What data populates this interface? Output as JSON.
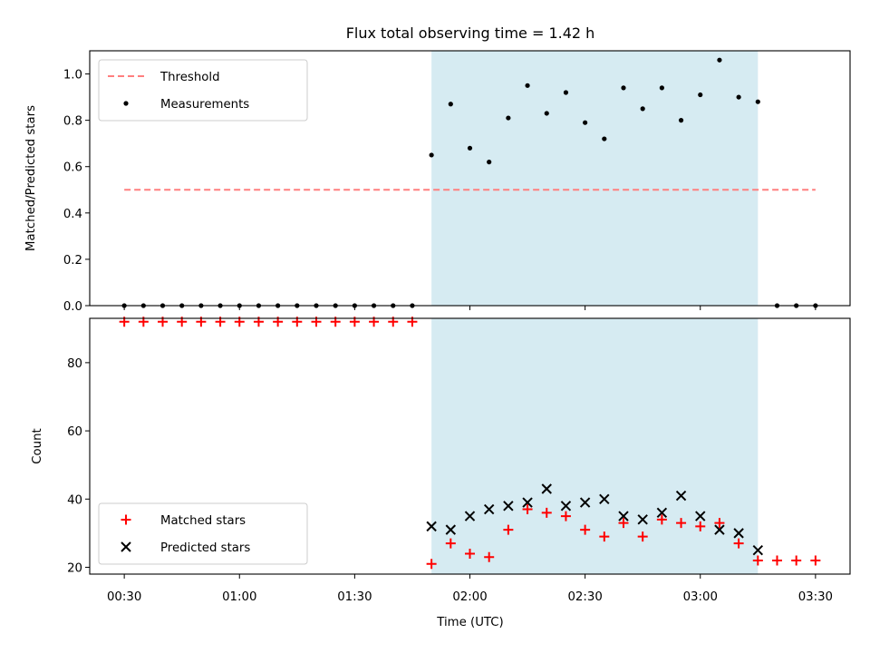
{
  "chart_data": {
    "type": "scatter",
    "title": "Flux total observing time = 1.42 h",
    "xlabel": "Time (UTC)",
    "x_ticks": [
      "00:30",
      "01:00",
      "01:30",
      "02:00",
      "02:30",
      "03:00",
      "03:30"
    ],
    "x_tick_minutes": [
      30,
      60,
      90,
      120,
      150,
      180,
      210
    ],
    "xlim_minutes": [
      21,
      219
    ],
    "shaded_window_minutes": [
      110,
      195
    ],
    "colors": {
      "threshold": "#ff7f7f",
      "measurements": "#000000",
      "matched": "#ff0000",
      "predicted": "#000000",
      "shade": "#add8e6"
    },
    "panels": [
      {
        "name": "ratio",
        "ylabel": "Matched/Predicted stars",
        "ylim": [
          0,
          1.1
        ],
        "y_ticks": [
          0.0,
          0.2,
          0.4,
          0.6,
          0.8,
          1.0
        ],
        "y_tick_labels": [
          "0.0",
          "0.2",
          "0.4",
          "0.6",
          "0.8",
          "1.0"
        ],
        "legend_position": "upper left",
        "series": [
          {
            "name": "Threshold",
            "kind": "dashed-line",
            "x": [
              30,
              210
            ],
            "y": [
              0.5,
              0.5
            ]
          },
          {
            "name": "Measurements",
            "kind": "dot",
            "x": [
              30,
              35,
              40,
              45,
              50,
              55,
              60,
              65,
              70,
              75,
              80,
              85,
              90,
              95,
              100,
              105,
              110,
              115,
              120,
              125,
              130,
              135,
              140,
              145,
              150,
              155,
              160,
              165,
              170,
              175,
              180,
              185,
              190,
              195,
              200,
              205,
              210
            ],
            "y": [
              0,
              0,
              0,
              0,
              0,
              0,
              0,
              0,
              0,
              0,
              0,
              0,
              0,
              0,
              0,
              0,
              0.65,
              0.87,
              0.68,
              0.62,
              0.81,
              0.95,
              0.83,
              0.92,
              0.79,
              0.72,
              0.94,
              0.85,
              0.94,
              0.8,
              0.91,
              1.06,
              0.9,
              0.88,
              0,
              0,
              0
            ]
          }
        ]
      },
      {
        "name": "count",
        "ylabel": "Count",
        "ylim": [
          18,
          93
        ],
        "y_ticks": [
          20,
          40,
          60,
          80
        ],
        "y_tick_labels": [
          "20",
          "40",
          "60",
          "80"
        ],
        "legend_position": "lower left",
        "series": [
          {
            "name": "Matched stars",
            "kind": "plus",
            "x": [
              30,
              35,
              40,
              45,
              50,
              55,
              60,
              65,
              70,
              75,
              80,
              85,
              90,
              95,
              100,
              105,
              110,
              115,
              120,
              125,
              130,
              135,
              140,
              145,
              150,
              155,
              160,
              165,
              170,
              175,
              180,
              185,
              190,
              195,
              200,
              205,
              210
            ],
            "y": [
              92,
              92,
              92,
              92,
              92,
              92,
              92,
              92,
              92,
              92,
              92,
              92,
              92,
              92,
              92,
              92,
              21,
              27,
              24,
              23,
              31,
              37,
              36,
              35,
              31,
              29,
              33,
              29,
              34,
              33,
              32,
              33,
              27,
              22,
              22,
              22,
              22
            ]
          },
          {
            "name": "Predicted stars",
            "kind": "x",
            "x": [
              110,
              115,
              120,
              125,
              130,
              135,
              140,
              145,
              150,
              155,
              160,
              165,
              170,
              175,
              180,
              185,
              190,
              195
            ],
            "y": [
              32,
              31,
              35,
              37,
              38,
              39,
              43,
              38,
              39,
              40,
              35,
              34,
              36,
              41,
              35,
              31,
              30,
              25
            ]
          }
        ]
      }
    ]
  }
}
